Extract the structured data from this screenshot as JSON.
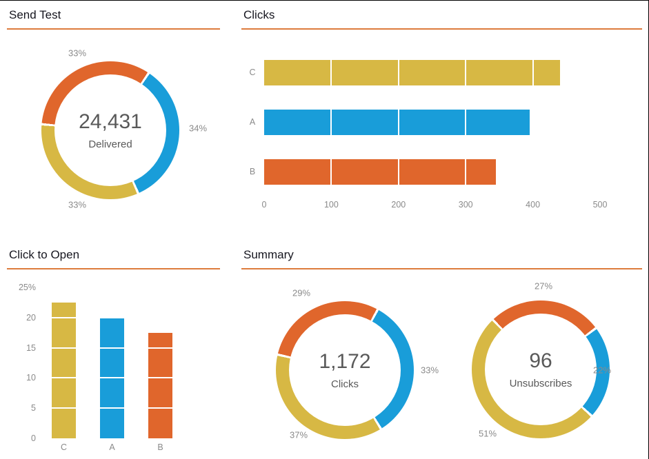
{
  "panels": {
    "send_test": {
      "title": "Send Test"
    },
    "clicks": {
      "title": "Clicks"
    },
    "click_to_open": {
      "title": "Click to Open"
    },
    "summary": {
      "title": "Summary"
    }
  },
  "colors": {
    "orange": "#E0662C",
    "blue": "#199DD9",
    "yellow": "#D7B844",
    "title_underline": "#DD7B3C",
    "axis_text": "#8A8A8A",
    "center_text": "#595959",
    "title_text": "#16161F"
  },
  "chart_data": [
    {
      "id": "send_test_donut",
      "type": "pie",
      "subtype": "donut",
      "title": "Send Test",
      "center_value": "24,431",
      "center_label": "Delivered",
      "start_angle_deg": -84,
      "segments": [
        {
          "category": "B",
          "label": "33%",
          "pct": 33,
          "color": "#E0662C"
        },
        {
          "category": "A",
          "label": "34%",
          "pct": 34,
          "color": "#199DD9"
        },
        {
          "category": "C",
          "label": "33%",
          "pct": 33,
          "color": "#D7B844"
        }
      ]
    },
    {
      "id": "clicks_bar",
      "type": "bar",
      "orientation": "horizontal",
      "title": "Clicks",
      "categories": [
        "C",
        "A",
        "B"
      ],
      "values": [
        440,
        395,
        345
      ],
      "colors": [
        "#D7B844",
        "#199DD9",
        "#E0662C"
      ],
      "xlim": [
        0,
        500
      ],
      "xticks": [
        0,
        100,
        200,
        300,
        400,
        500
      ],
      "gridlines": [
        100,
        200,
        300,
        400
      ]
    },
    {
      "id": "click_to_open_column",
      "type": "bar",
      "orientation": "vertical",
      "title": "Click to Open",
      "categories": [
        "C",
        "A",
        "B"
      ],
      "values": [
        22.5,
        20,
        17.5
      ],
      "unit": "%",
      "colors": [
        "#D7B844",
        "#199DD9",
        "#E0662C"
      ],
      "ylim": [
        0,
        25
      ],
      "yticks": [
        "0",
        "5",
        "10",
        "15",
        "20",
        "25%"
      ],
      "gridlines": [
        5,
        10,
        15,
        20
      ]
    },
    {
      "id": "summary_clicks_donut",
      "type": "pie",
      "subtype": "donut",
      "title": "Summary",
      "center_value": "1,172",
      "center_label": "Clicks",
      "start_angle_deg": -76,
      "segments": [
        {
          "category": "B",
          "label": "29%",
          "pct": 29,
          "color": "#E0662C"
        },
        {
          "category": "A",
          "label": "33%",
          "pct": 33,
          "color": "#199DD9"
        },
        {
          "category": "C",
          "label": "37%",
          "pct": 37,
          "color": "#D7B844"
        }
      ]
    },
    {
      "id": "summary_unsubscribes_donut",
      "type": "pie",
      "subtype": "donut",
      "title": "Summary",
      "center_value": "96",
      "center_label": "Unsubscribes",
      "start_angle_deg": -43,
      "segments": [
        {
          "category": "B",
          "label": "27%",
          "pct": 27,
          "color": "#E0662C"
        },
        {
          "category": "A",
          "label": "22%",
          "pct": 22,
          "color": "#199DD9"
        },
        {
          "category": "C",
          "label": "51%",
          "pct": 51,
          "color": "#D7B844"
        }
      ]
    }
  ]
}
